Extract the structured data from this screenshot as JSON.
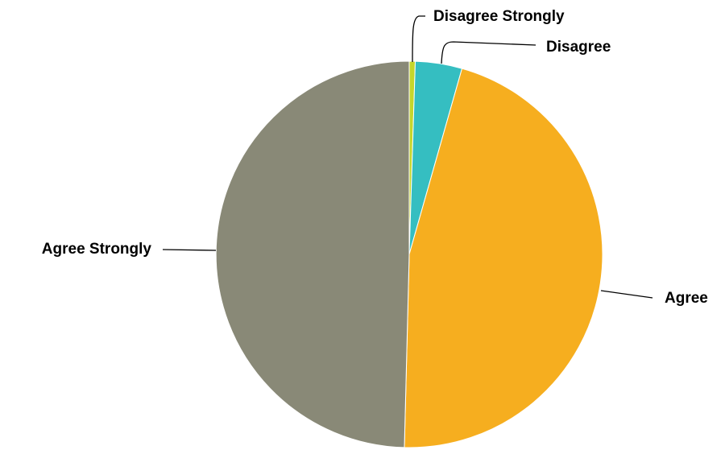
{
  "chart_data": {
    "type": "pie",
    "title": "",
    "slices": [
      {
        "label": "Disagree Strongly",
        "value": 0.5,
        "color": "#C5D62C"
      },
      {
        "label": "Disagree",
        "value": 3.9,
        "color": "#35BEC1"
      },
      {
        "label": "Agree",
        "value": 46.0,
        "color": "#F6AE1F"
      },
      {
        "label": "Agree Strongly",
        "value": 49.6,
        "color": "#898977"
      }
    ],
    "start_angle_deg": 0,
    "direction": "clockwise",
    "legend": "none"
  }
}
